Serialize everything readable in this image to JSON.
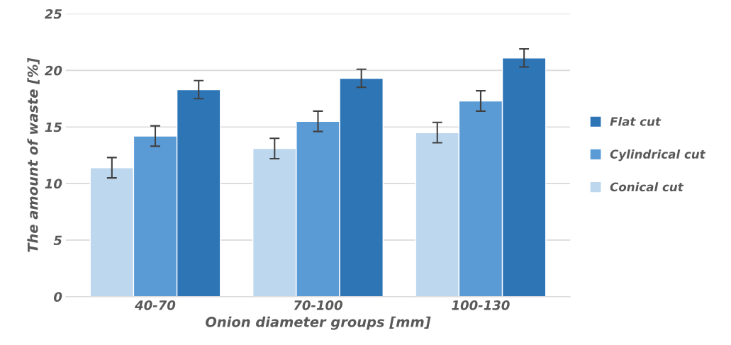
{
  "chart_data": {
    "type": "bar",
    "xlabel": "Onion diameter groups [mm]",
    "ylabel": "The amount of waste [%]",
    "categories": [
      "40-70",
      "70-100",
      "100-130"
    ],
    "series": [
      {
        "name": "Conical cut",
        "color": "#bdd7ee",
        "values": [
          11.4,
          13.1,
          14.5
        ],
        "errors": [
          0.9,
          0.9,
          0.9
        ]
      },
      {
        "name": "Cylindrical cut",
        "color": "#5b9bd5",
        "values": [
          14.2,
          15.5,
          17.3
        ],
        "errors": [
          0.9,
          0.9,
          0.9
        ]
      },
      {
        "name": "Flat cut",
        "color": "#2e75b6",
        "values": [
          18.3,
          19.3,
          21.1
        ],
        "errors": [
          0.8,
          0.8,
          0.8
        ]
      }
    ],
    "ylim": [
      0,
      25
    ],
    "yticks": [
      0,
      5,
      10,
      15,
      20,
      25
    ],
    "grid": "y",
    "legend": "right"
  }
}
